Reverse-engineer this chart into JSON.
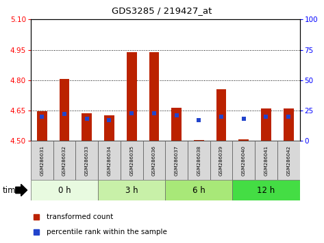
{
  "title": "GDS3285 / 219427_at",
  "samples": [
    "GSM286031",
    "GSM286032",
    "GSM286033",
    "GSM286034",
    "GSM286035",
    "GSM286036",
    "GSM286037",
    "GSM286038",
    "GSM286039",
    "GSM286040",
    "GSM286041",
    "GSM286042"
  ],
  "red_values": [
    4.648,
    4.805,
    4.635,
    4.625,
    4.938,
    4.937,
    4.665,
    4.505,
    4.755,
    4.508,
    4.66,
    4.66
  ],
  "blue_values": [
    20,
    22,
    18,
    17,
    23,
    23,
    21,
    17,
    20,
    18,
    20,
    20
  ],
  "ylim_left": [
    4.5,
    5.1
  ],
  "ylim_right": [
    0,
    100
  ],
  "yticks_left": [
    4.5,
    4.65,
    4.8,
    4.95,
    5.1
  ],
  "yticks_right": [
    0,
    25,
    50,
    75,
    100
  ],
  "grid_values": [
    4.65,
    4.8,
    4.95
  ],
  "bar_color": "#bb2200",
  "blue_color": "#2244cc",
  "bar_base": 4.5,
  "legend_red": "transformed count",
  "legend_blue": "percentile rank within the sample",
  "time_label": "time",
  "group_data": [
    {
      "label": "0 h",
      "start": 0,
      "end": 3,
      "color": "#e8fae0"
    },
    {
      "label": "3 h",
      "start": 3,
      "end": 6,
      "color": "#c8f0a8"
    },
    {
      "label": "6 h",
      "start": 6,
      "end": 9,
      "color": "#a8e878"
    },
    {
      "label": "12 h",
      "start": 9,
      "end": 12,
      "color": "#44dd44"
    }
  ]
}
